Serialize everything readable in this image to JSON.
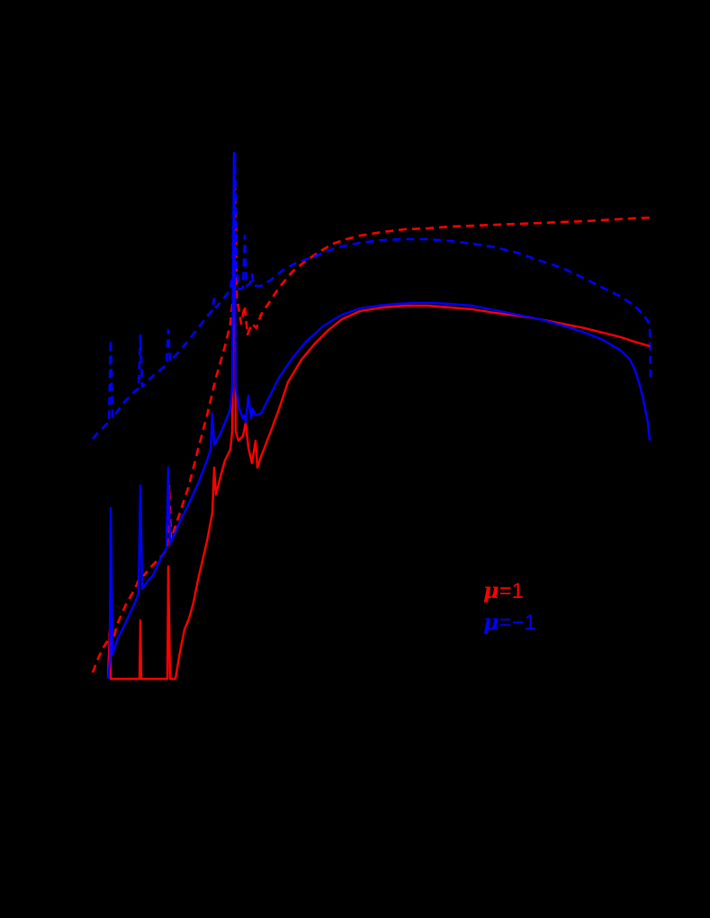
{
  "chart_data": {
    "type": "line",
    "title": "",
    "xlabel": "",
    "ylabel": "",
    "grid": false,
    "legend_position": "lower right (inside plot)",
    "notes": "Axes, ticks, and labels are rendered black on a black background and are not visible; values are given in pixel coordinates of the 789x1021 canvas.",
    "legend": [
      {
        "label_symbol": "μ",
        "label_value": "=1",
        "color": "#ff0000"
      },
      {
        "label_symbol": "μ",
        "label_value": "=−1",
        "color": "#0000ff"
      }
    ],
    "series": [
      {
        "name": "μ=1 (dashed)",
        "color": "#ff0000",
        "style": "dashed",
        "points": [
          [
            103,
            748
          ],
          [
            110,
            730
          ],
          [
            115,
            720
          ],
          [
            120,
            712
          ],
          [
            123,
            700
          ],
          [
            125,
            715
          ],
          [
            130,
            695
          ],
          [
            140,
            672
          ],
          [
            150,
            655
          ],
          [
            156,
            640
          ],
          [
            160,
            640
          ],
          [
            170,
            628
          ],
          [
            180,
            618
          ],
          [
            186,
            610
          ],
          [
            188,
            540
          ],
          [
            190,
            600
          ],
          [
            200,
            570
          ],
          [
            210,
            540
          ],
          [
            220,
            500
          ],
          [
            230,
            462
          ],
          [
            240,
            420
          ],
          [
            250,
            385
          ],
          [
            256,
            360
          ],
          [
            259,
            330
          ],
          [
            261,
            200
          ],
          [
            263,
            330
          ],
          [
            268,
            360
          ],
          [
            272,
            340
          ],
          [
            275,
            372
          ],
          [
            280,
            360
          ],
          [
            285,
            365
          ],
          [
            290,
            350
          ],
          [
            300,
            335
          ],
          [
            310,
            320
          ],
          [
            325,
            302
          ],
          [
            340,
            290
          ],
          [
            355,
            280
          ],
          [
            370,
            271
          ],
          [
            385,
            266
          ],
          [
            400,
            262
          ],
          [
            425,
            258
          ],
          [
            450,
            255
          ],
          [
            475,
            254
          ],
          [
            500,
            252
          ],
          [
            550,
            250
          ],
          [
            600,
            248
          ],
          [
            650,
            246
          ],
          [
            700,
            243
          ],
          [
            723,
            242
          ]
        ]
      },
      {
        "name": "μ=−1 (dashed)",
        "color": "#0000ff",
        "style": "dashed",
        "points": [
          [
            103,
            488
          ],
          [
            110,
            480
          ],
          [
            118,
            472
          ],
          [
            121,
            470
          ],
          [
            123,
            378
          ],
          [
            125,
            465
          ],
          [
            130,
            458
          ],
          [
            140,
            445
          ],
          [
            150,
            435
          ],
          [
            154,
            432
          ],
          [
            156,
            373
          ],
          [
            158,
            430
          ],
          [
            170,
            418
          ],
          [
            180,
            410
          ],
          [
            185,
            405
          ],
          [
            187,
            367
          ],
          [
            189,
            402
          ],
          [
            200,
            390
          ],
          [
            210,
            378
          ],
          [
            220,
            365
          ],
          [
            230,
            352
          ],
          [
            236,
            345
          ],
          [
            238,
            332
          ],
          [
            240,
            342
          ],
          [
            250,
            330
          ],
          [
            256,
            322
          ],
          [
            259,
            300
          ],
          [
            261,
            170
          ],
          [
            263,
            300
          ],
          [
            266,
            322
          ],
          [
            270,
            320
          ],
          [
            272,
            262
          ],
          [
            274,
            318
          ],
          [
            278,
            315
          ],
          [
            280,
            305
          ],
          [
            282,
            318
          ],
          [
            290,
            318
          ],
          [
            300,
            312
          ],
          [
            315,
            300
          ],
          [
            330,
            292
          ],
          [
            350,
            285
          ],
          [
            375,
            275
          ],
          [
            400,
            270
          ],
          [
            425,
            267
          ],
          [
            450,
            266
          ],
          [
            475,
            266
          ],
          [
            500,
            268
          ],
          [
            525,
            271
          ],
          [
            550,
            275
          ],
          [
            575,
            281
          ],
          [
            600,
            290
          ],
          [
            625,
            298
          ],
          [
            650,
            310
          ],
          [
            670,
            320
          ],
          [
            690,
            330
          ],
          [
            705,
            340
          ],
          [
            715,
            350
          ],
          [
            720,
            357
          ],
          [
            722,
            365
          ],
          [
            723,
            420
          ]
        ]
      },
      {
        "name": "μ=1 (solid)",
        "color": "#ff0000",
        "style": "solid",
        "points": [
          [
            120,
            755
          ],
          [
            122,
            700
          ],
          [
            123,
            755
          ],
          [
            155,
            755
          ],
          [
            156,
            690
          ],
          [
            157,
            755
          ],
          [
            186,
            755
          ],
          [
            187,
            630
          ],
          [
            189,
            755
          ],
          [
            192,
            755
          ],
          [
            195,
            755
          ],
          [
            200,
            725
          ],
          [
            205,
            700
          ],
          [
            210,
            688
          ],
          [
            215,
            670
          ],
          [
            220,
            645
          ],
          [
            230,
            602
          ],
          [
            236,
            570
          ],
          [
            238,
            520
          ],
          [
            240,
            550
          ],
          [
            245,
            530
          ],
          [
            250,
            512
          ],
          [
            256,
            500
          ],
          [
            258,
            480
          ],
          [
            260,
            215
          ],
          [
            262,
            480
          ],
          [
            265,
            490
          ],
          [
            270,
            485
          ],
          [
            273,
            470
          ],
          [
            276,
            498
          ],
          [
            280,
            515
          ],
          [
            284,
            490
          ],
          [
            286,
            520
          ],
          [
            290,
            508
          ],
          [
            300,
            482
          ],
          [
            310,
            455
          ],
          [
            320,
            425
          ],
          [
            335,
            400
          ],
          [
            350,
            382
          ],
          [
            365,
            367
          ],
          [
            380,
            355
          ],
          [
            400,
            346
          ],
          [
            425,
            342
          ],
          [
            450,
            340
          ],
          [
            475,
            340
          ],
          [
            500,
            342
          ],
          [
            525,
            344
          ],
          [
            550,
            348
          ],
          [
            575,
            351
          ],
          [
            600,
            355
          ],
          [
            625,
            360
          ],
          [
            650,
            365
          ],
          [
            670,
            370
          ],
          [
            690,
            375
          ],
          [
            705,
            380
          ],
          [
            722,
            385
          ]
        ]
      },
      {
        "name": "μ=−1 (solid)",
        "color": "#0000ff",
        "style": "solid",
        "points": [
          [
            120,
            755
          ],
          [
            122,
            735
          ],
          [
            123,
            565
          ],
          [
            125,
            728
          ],
          [
            130,
            712
          ],
          [
            140,
            692
          ],
          [
            150,
            670
          ],
          [
            154,
            660
          ],
          [
            156,
            540
          ],
          [
            158,
            655
          ],
          [
            165,
            645
          ],
          [
            170,
            640
          ],
          [
            180,
            618
          ],
          [
            185,
            610
          ],
          [
            187,
            520
          ],
          [
            189,
            605
          ],
          [
            200,
            580
          ],
          [
            210,
            560
          ],
          [
            220,
            538
          ],
          [
            230,
            512
          ],
          [
            234,
            500
          ],
          [
            236,
            460
          ],
          [
            238,
            495
          ],
          [
            245,
            482
          ],
          [
            250,
            470
          ],
          [
            256,
            455
          ],
          [
            258,
            430
          ],
          [
            260,
            170
          ],
          [
            262,
            430
          ],
          [
            266,
            455
          ],
          [
            270,
            465
          ],
          [
            272,
            462
          ],
          [
            273,
            470
          ],
          [
            276,
            440
          ],
          [
            279,
            465
          ],
          [
            281,
            455
          ],
          [
            284,
            462
          ],
          [
            290,
            460
          ],
          [
            300,
            440
          ],
          [
            310,
            420
          ],
          [
            325,
            398
          ],
          [
            340,
            380
          ],
          [
            360,
            362
          ],
          [
            380,
            350
          ],
          [
            400,
            343
          ],
          [
            420,
            340
          ],
          [
            440,
            338
          ],
          [
            460,
            337
          ],
          [
            480,
            337
          ],
          [
            500,
            338
          ],
          [
            525,
            340
          ],
          [
            550,
            345
          ],
          [
            575,
            350
          ],
          [
            600,
            355
          ],
          [
            625,
            362
          ],
          [
            650,
            370
          ],
          [
            670,
            378
          ],
          [
            690,
            390
          ],
          [
            700,
            400
          ],
          [
            705,
            410
          ],
          [
            710,
            425
          ],
          [
            715,
            445
          ],
          [
            720,
            470
          ],
          [
            722,
            490
          ]
        ]
      }
    ]
  }
}
